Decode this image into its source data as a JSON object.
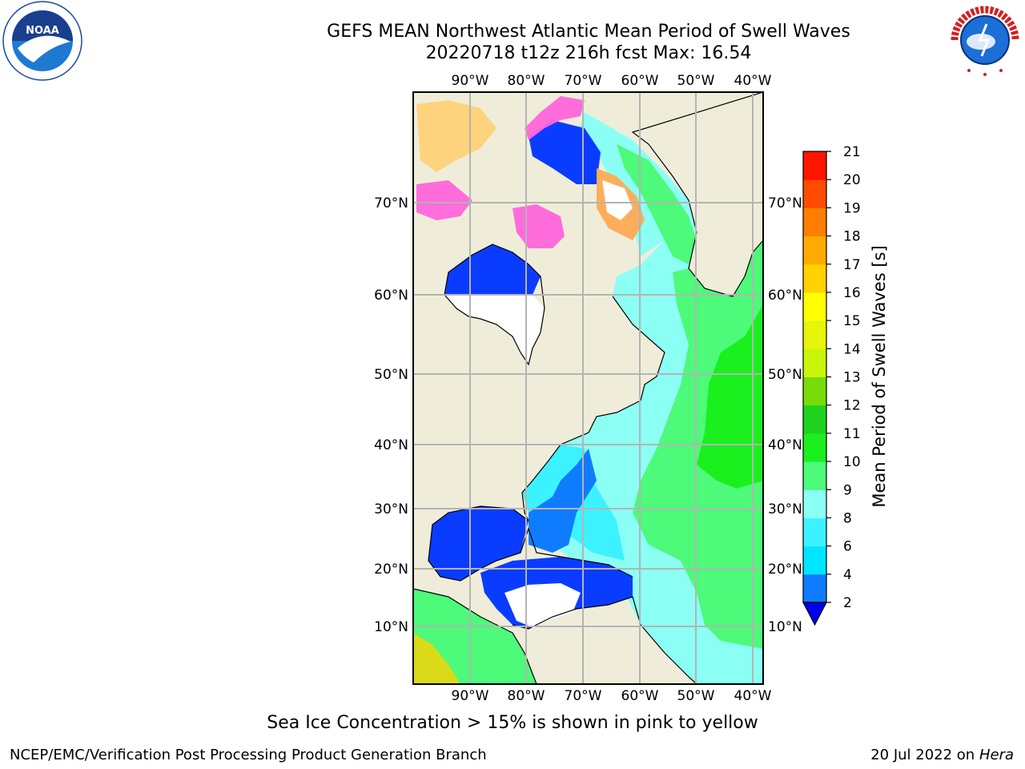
{
  "header": {
    "title_line1": "GEFS MEAN Northwest Atlantic Mean Period of Swell Waves",
    "title_line2": "20220718 t12z 216h fcst   Max: 16.54"
  },
  "logos": {
    "left": {
      "icon": "noaa-logo",
      "text": "NOAA"
    },
    "right": {
      "icon": "nws-logo",
      "text": "NATIONAL WEATHER SERVICE"
    }
  },
  "map": {
    "lon_labels": [
      "90°W",
      "80°W",
      "70°W",
      "60°W",
      "50°W",
      "40°W"
    ],
    "lat_labels": [
      "70°N",
      "60°N",
      "50°N",
      "40°N",
      "30°N",
      "20°N",
      "10°N"
    ],
    "land_color": "#efedd9",
    "grid_color": "#b4b4b4"
  },
  "colorbar": {
    "label": "Mean Period of Swell Waves [s]",
    "ticks": [
      "2",
      "4",
      "6",
      "8",
      "9",
      "10",
      "11",
      "12",
      "13",
      "14",
      "15",
      "16",
      "17",
      "18",
      "19",
      "20",
      "21"
    ],
    "colors": [
      "#0a3cff",
      "#0f7cff",
      "#00e5ff",
      "#3df2ff",
      "#8cfff5",
      "#4dfa7a",
      "#19f01e",
      "#1ed21e",
      "#78dc0a",
      "#c8f50a",
      "#e6f50a",
      "#ffff00",
      "#ffd200",
      "#ffaa00",
      "#ff7d00",
      "#ff4b00",
      "#ff1400",
      "#ff0000"
    ],
    "extend_color": "#0000f0"
  },
  "caption": "Sea Ice Concentration > 15% is shown in pink to yellow",
  "footer": {
    "left": "NCEP/EMC/Verification Post Processing Product Generation Branch",
    "right_date": "20 Jul 2022 on ",
    "right_host": "Hera"
  }
}
